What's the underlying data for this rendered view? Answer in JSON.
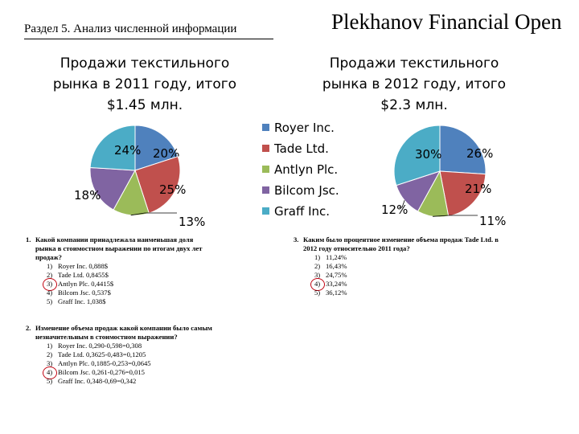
{
  "header": {
    "section": "Раздел 5. Анализ численной информации",
    "brand": "Plekhanov Financial Open"
  },
  "colors": {
    "royer": "#4f81bd",
    "tade": "#c0504d",
    "antlyn": "#9bbb59",
    "bilcom": "#8064a2",
    "graff": "#4bacc6",
    "circle": "#c0000e"
  },
  "legend": [
    "Royer Inc.",
    "Tade Ltd.",
    "Antlyn Plc.",
    "Bilcom Jsc.",
    "Graff Inc."
  ],
  "chart_data": [
    {
      "type": "pie",
      "title": "Продажи текстильного рынка в 2011 году, итого $1.45 млн.",
      "categories": [
        "Royer Inc.",
        "Tade Ltd.",
        "Antlyn Plc.",
        "Bilcom Jsc.",
        "Graff Inc."
      ],
      "values": [
        20,
        25,
        13,
        18,
        24
      ],
      "labels": [
        "20%",
        "25%",
        "13%",
        "18%",
        "24%"
      ],
      "legend_position": "right"
    },
    {
      "type": "pie",
      "title": "Продажи текстильного рынка в 2012 году, итого $2.3 млн.",
      "categories": [
        "Royer Inc.",
        "Tade Ltd.",
        "Antlyn Plc.",
        "Bilcom Jsc.",
        "Graff Inc."
      ],
      "values": [
        26,
        21,
        11,
        12,
        30
      ],
      "labels": [
        "26%",
        "21%",
        "11%",
        "12%",
        "30%"
      ],
      "legend_position": "left"
    }
  ],
  "questions": [
    {
      "num": "1.",
      "text": "Какой компании принадлежала наименьшая доля\nрынка в стоимостном выражении по итогам двух лет\nпродаж?",
      "options": [
        {
          "n": "1)",
          "t": "Royer Inc. 0,888$",
          "circled": false
        },
        {
          "n": "2)",
          "t": "Tade Ltd. 0,8455$",
          "circled": false
        },
        {
          "n": "3)",
          "t": "Antlyn Plc. 0,4415$",
          "circled": true
        },
        {
          "n": "4)",
          "t": "Bilcom Jsc. 0,537$",
          "circled": false
        },
        {
          "n": "5)",
          "t": "Graff Inc. 1,038$",
          "circled": false
        }
      ]
    },
    {
      "num": "2.",
      "text": "Изменение объема продаж какой компании было самым\nнезначительным в стоимостном выражении?",
      "options": [
        {
          "n": "1)",
          "t": "Royer Inc. 0,290-0,598=0,308",
          "circled": false
        },
        {
          "n": "2)",
          "t": "Tade Ltd. 0,3625-0,483=0,1205",
          "circled": false
        },
        {
          "n": "3)",
          "t": "Antlyn Plc. 0,1885-0,253=0,0645",
          "circled": false
        },
        {
          "n": "4)",
          "t": "Bilcom Jsc. 0,261-0,276=0,015",
          "circled": true
        },
        {
          "n": "5)",
          "t": "Graff Inc. 0,348-0,69=0,342",
          "circled": false
        }
      ]
    },
    {
      "num": "3.",
      "text": "Каким было процентное изменение объема продаж Tade Ltd. в\n2012 году относительно 2011 года?",
      "options": [
        {
          "n": "1)",
          "t": "11,24%",
          "circled": false
        },
        {
          "n": "2)",
          "t": "16,43%",
          "circled": false
        },
        {
          "n": "3)",
          "t": "24,75%",
          "circled": false
        },
        {
          "n": "4)",
          "t": "33,24%",
          "circled": true
        },
        {
          "n": "5)",
          "t": "36,12%",
          "circled": false
        }
      ]
    }
  ]
}
